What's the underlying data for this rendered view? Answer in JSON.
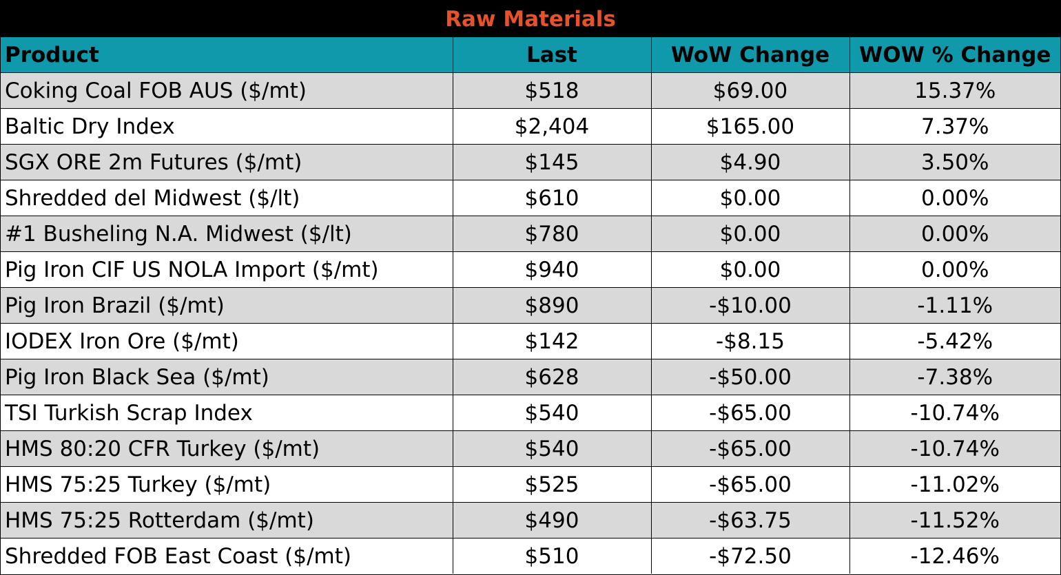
{
  "title": "Raw Materials",
  "headers": [
    "Product",
    "Last",
    "WoW Change",
    "WOW % Change"
  ],
  "rows": [
    [
      "Coking Coal FOB AUS ($/mt)",
      "$518",
      "$69.00",
      "15.37%"
    ],
    [
      "Baltic Dry Index",
      "$2,404",
      "$165.00",
      "7.37%"
    ],
    [
      "SGX ORE 2m Futures ($/mt)",
      "$145",
      "$4.90",
      "3.50%"
    ],
    [
      "Shredded del  Midwest ($/lt)",
      "$610",
      "$0.00",
      "0.00%"
    ],
    [
      "#1 Busheling N.A. Midwest ($/lt)",
      "$780",
      "$0.00",
      "0.00%"
    ],
    [
      "Pig Iron CIF US NOLA Import ($/mt)",
      "$940",
      "$0.00",
      "0.00%"
    ],
    [
      "Pig Iron Brazil ($/mt)",
      "$890",
      "-$10.00",
      "-1.11%"
    ],
    [
      "IODEX  Iron Ore ($/mt)",
      "$142",
      "-$8.15",
      "-5.42%"
    ],
    [
      "Pig Iron Black Sea ($/mt)",
      "$628",
      "-$50.00",
      "-7.38%"
    ],
    [
      "TSI Turkish Scrap Index",
      "$540",
      "-$65.00",
      "-10.74%"
    ],
    [
      "HMS 80:20 CFR Turkey ($/mt)",
      "$540",
      "-$65.00",
      "-10.74%"
    ],
    [
      "HMS 75:25 Turkey ($/mt)",
      "$525",
      "-$65.00",
      "-11.02%"
    ],
    [
      "HMS 75:25 Rotterdam ($/mt)",
      "$490",
      "-$63.75",
      "-11.52%"
    ],
    [
      "Shredded FOB East Coast ($/mt)",
      "$510",
      "-$72.50",
      "-12.46%"
    ]
  ],
  "colors": {
    "title_bg": "#000000",
    "title_text": "#e8512a",
    "header_bg": "#0f99ab",
    "shade_row": "#d9d9d9",
    "plain_row": "#ffffff"
  }
}
